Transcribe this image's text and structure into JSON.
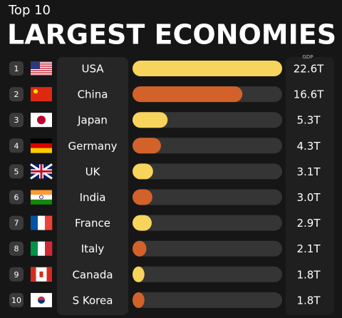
{
  "chart_data": {
    "type": "bar",
    "subtitle": "Top 10",
    "title": "LARGEST ECONOMIES",
    "value_header": "GDP",
    "ranks": [
      1,
      2,
      3,
      4,
      5,
      6,
      7,
      8,
      9,
      10
    ],
    "categories": [
      "USA",
      "China",
      "Japan",
      "Germany",
      "UK",
      "India",
      "France",
      "Italy",
      "Canada",
      "S Korea"
    ],
    "values": [
      22.6,
      16.6,
      5.3,
      4.3,
      3.1,
      3.0,
      2.9,
      2.1,
      1.8,
      1.8
    ],
    "value_labels": [
      "22.6T",
      "16.6T",
      "5.3T",
      "4.3T",
      "3.1T",
      "3.0T",
      "2.9T",
      "2.1T",
      "1.8T",
      "1.8T"
    ],
    "colors": [
      "#f7d45c",
      "#d2622a",
      "#f7d45c",
      "#d2622a",
      "#f7d45c",
      "#d2622a",
      "#f7d45c",
      "#d2622a",
      "#f7d45c",
      "#d2622a"
    ]
  }
}
